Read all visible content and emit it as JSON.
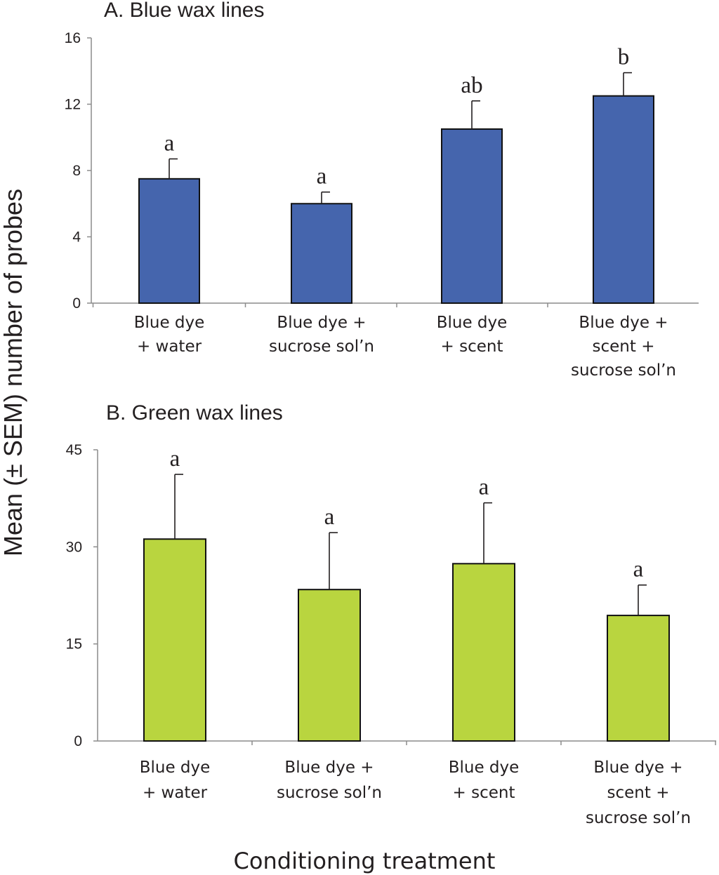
{
  "ylabel": "Mean (± SEM) number of probes",
  "xlabel": "Conditioning treatment",
  "chart_data": [
    {
      "type": "bar",
      "title": "A. Blue wax lines",
      "color": "#4565ad",
      "categories": [
        [
          "Blue dye",
          "+ water"
        ],
        [
          "Blue dye +",
          "sucrose sol’n"
        ],
        [
          "Blue dye",
          "+ scent"
        ],
        [
          "Blue dye +",
          "scent +",
          "sucrose sol’n"
        ]
      ],
      "values": [
        7.5,
        6.0,
        10.5,
        12.5
      ],
      "errors": [
        1.2,
        0.7,
        1.7,
        1.4
      ],
      "letters": [
        "a",
        "a",
        "ab",
        "b"
      ],
      "ylim": [
        0,
        16
      ],
      "yticks": [
        0,
        4,
        8,
        12,
        16
      ]
    },
    {
      "type": "bar",
      "title": "B. Green wax lines",
      "color": "#b9d53f",
      "categories": [
        [
          "Blue dye",
          "+ water"
        ],
        [
          "Blue dye +",
          "sucrose sol’n"
        ],
        [
          "Blue dye",
          "+ scent"
        ],
        [
          "Blue dye +",
          "scent +",
          "sucrose sol’n"
        ]
      ],
      "values": [
        31.2,
        23.4,
        27.4,
        19.4
      ],
      "errors": [
        10.0,
        8.8,
        9.4,
        4.7
      ],
      "letters": [
        "a",
        "a",
        "a",
        "a"
      ],
      "ylim": [
        0,
        45
      ],
      "yticks": [
        0,
        15,
        30,
        45
      ]
    }
  ]
}
